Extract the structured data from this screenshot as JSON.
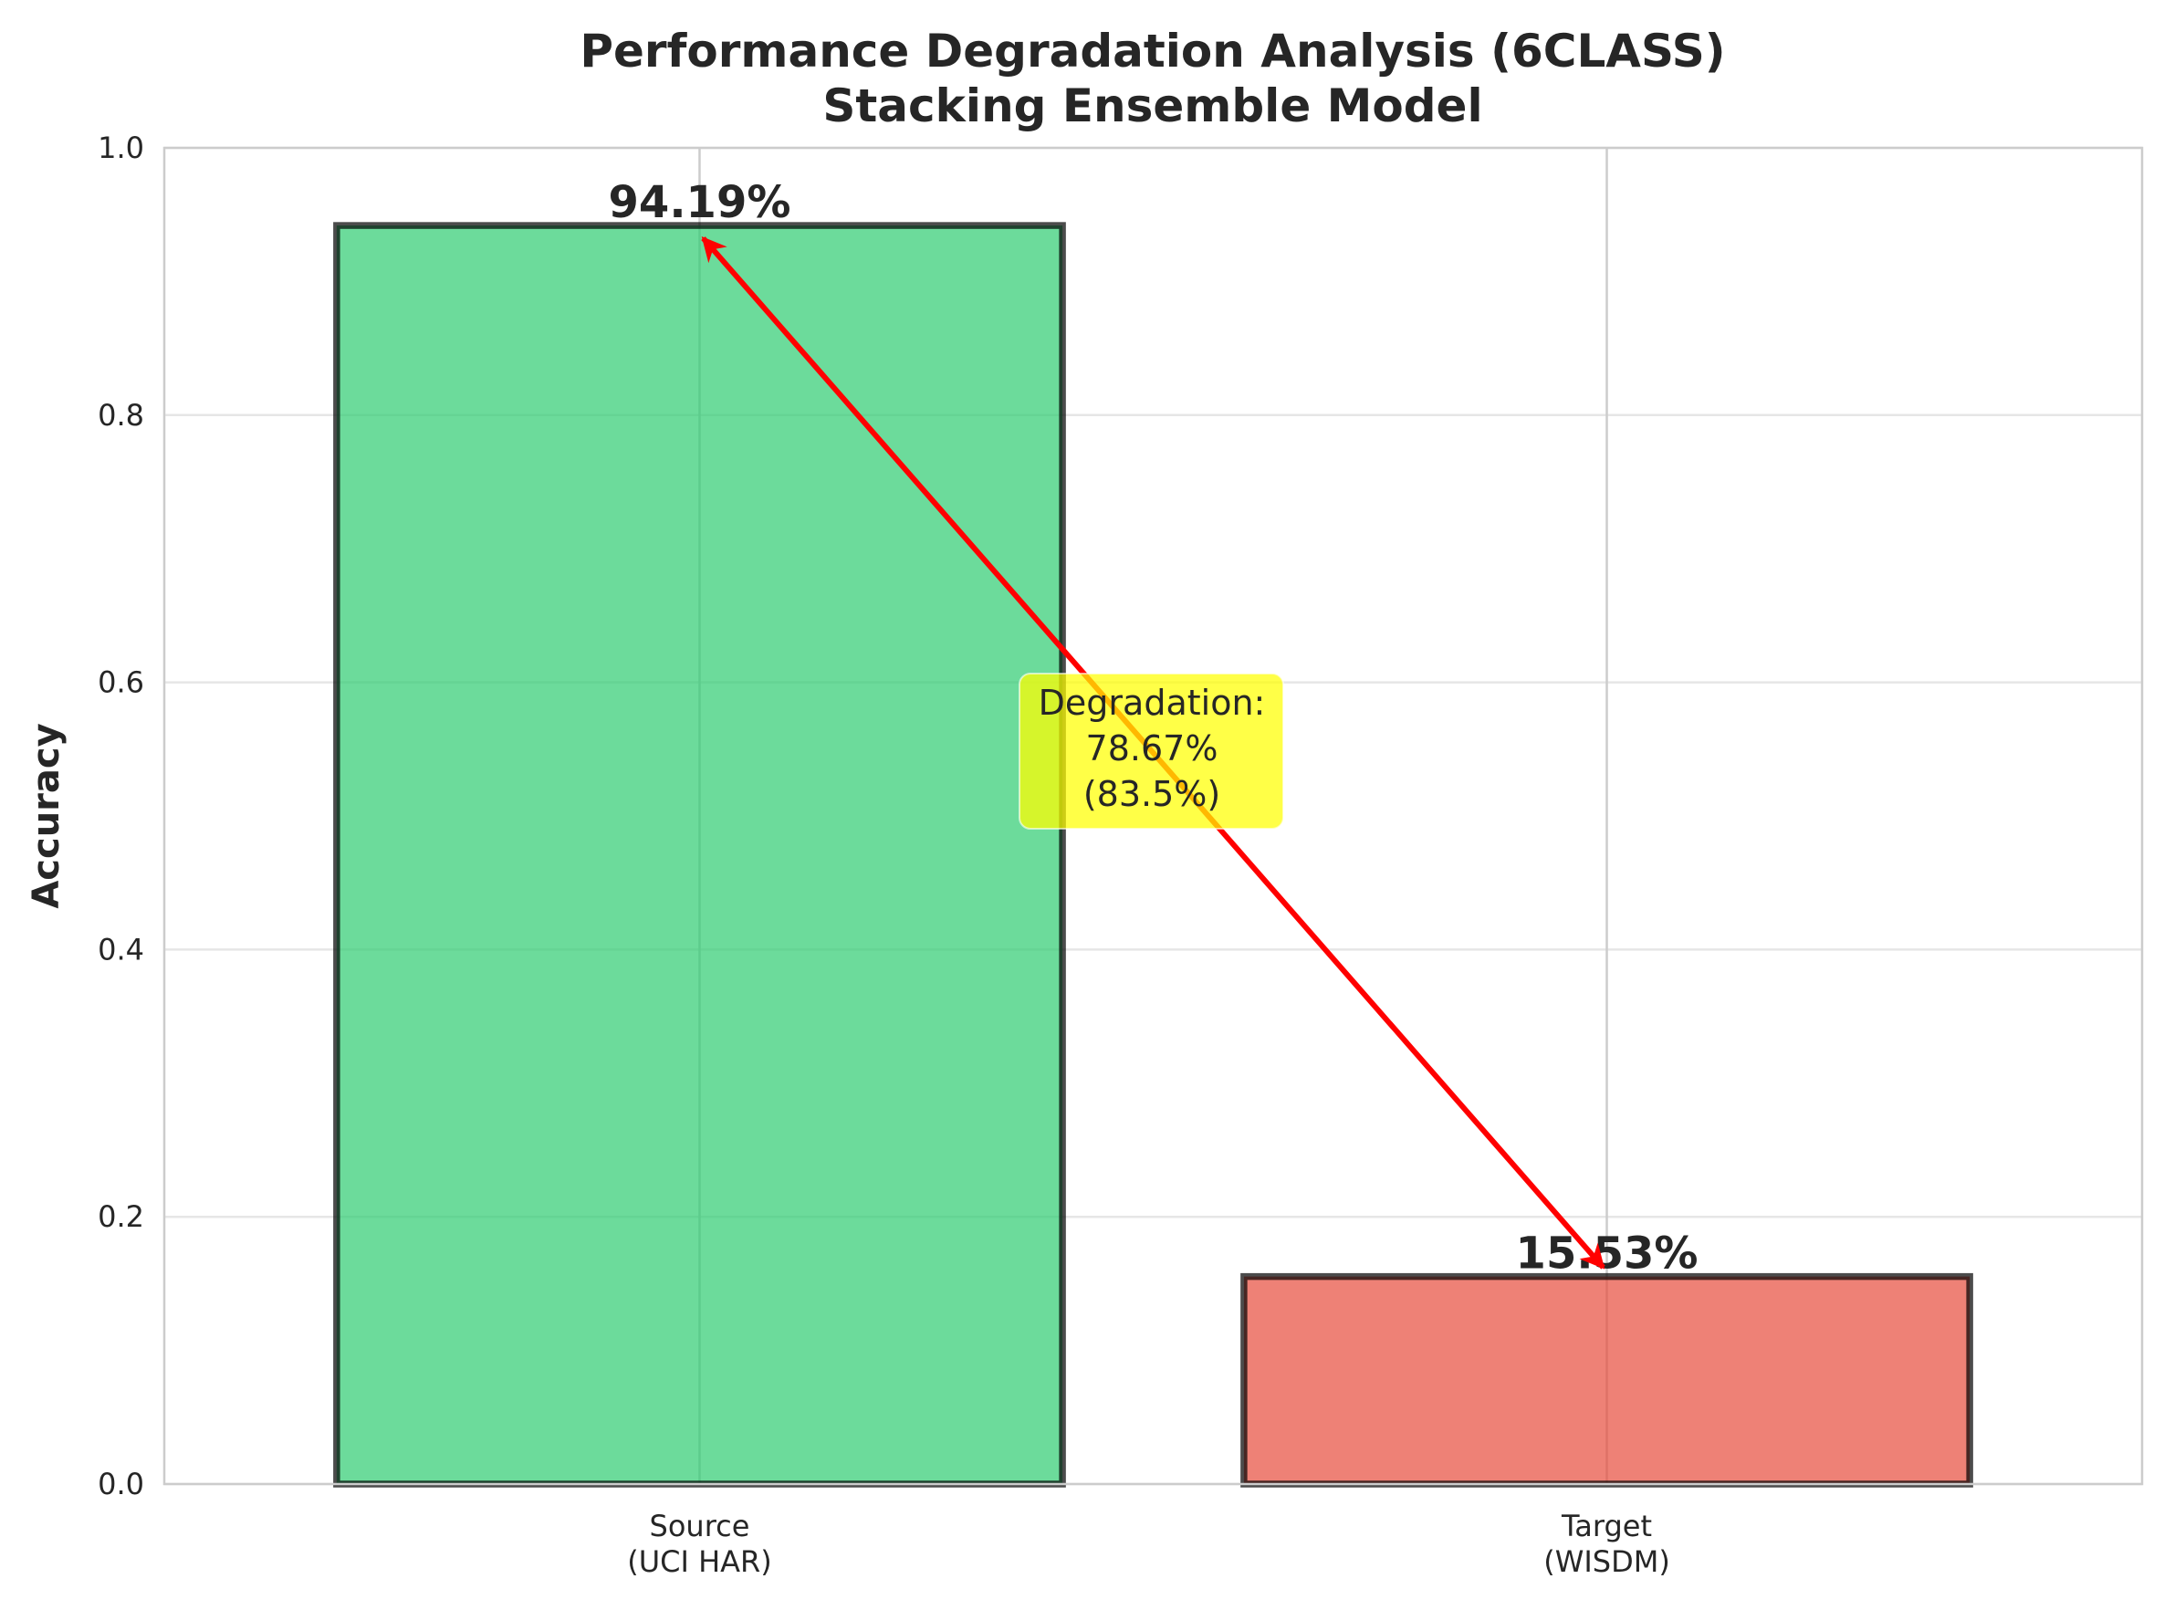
{
  "chart_data": {
    "type": "bar",
    "title_line1": "Performance Degradation Analysis (6CLASS)",
    "title_line2": "Stacking Ensemble Model",
    "xlabel": "",
    "ylabel": "Accuracy",
    "ylim": [
      0,
      1.0
    ],
    "yticks": [
      "0.0",
      "0.2",
      "0.4",
      "0.6",
      "0.8",
      "1.0"
    ],
    "categories": [
      {
        "line1": "Source",
        "line2": "(UCI HAR)"
      },
      {
        "line1": "Target",
        "line2": "(WISDM)"
      }
    ],
    "values": [
      0.9419,
      0.1553
    ],
    "value_labels": [
      "94.19%",
      "15.53%"
    ],
    "bar_colors": [
      "#2ecc71",
      "#e74c3c"
    ],
    "grid": true,
    "annotation": {
      "line1": "Degradation:",
      "line2": "78.67%",
      "line3": "(83.5%)",
      "box_color": "#ffff00",
      "arrow_color": "#ff0000",
      "from": [
        0,
        0.9419
      ],
      "to": [
        1,
        0.1553
      ]
    }
  }
}
